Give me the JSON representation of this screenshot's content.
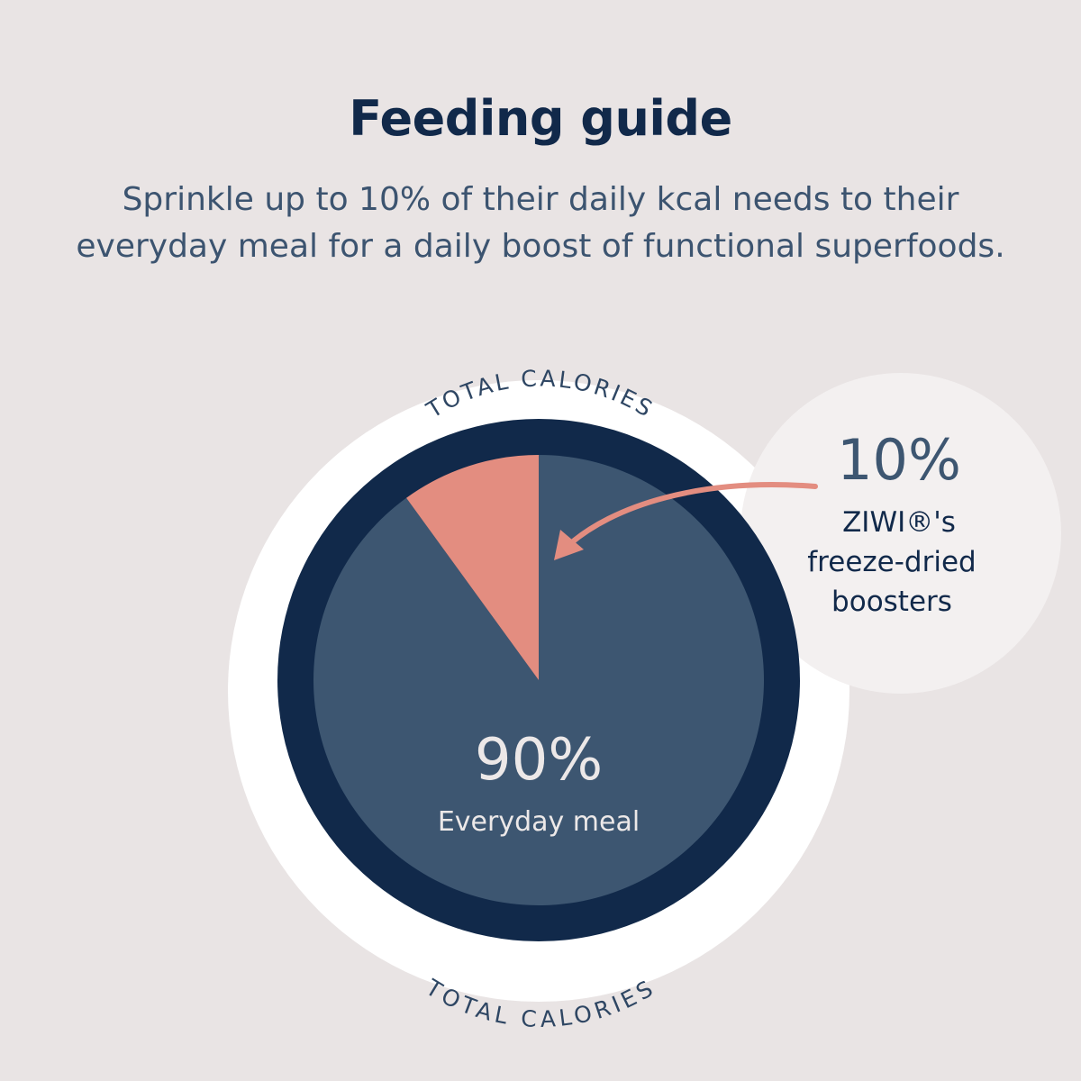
{
  "header": {
    "title": "Feeding guide",
    "subtitle": "Sprinkle up to 10% of their daily kcal needs to their everyday meal for a daily boost of functional superfoods."
  },
  "chart_data": {
    "type": "pie",
    "ring_label_top": "TOTAL CALORIES",
    "ring_label_bottom": "TOTAL CALORIES",
    "slices": [
      {
        "name": "Everyday meal",
        "value": 90,
        "label": "90%",
        "color": "#3d5671"
      },
      {
        "name": "ZIWI®'s freeze-dried boosters",
        "value": 10,
        "label": "10%",
        "color": "#e38d80"
      }
    ],
    "callout": {
      "value_label": "10%",
      "lines": [
        "ZIWI®'s",
        "freeze-dried",
        "boosters"
      ]
    },
    "main_label": {
      "value_label": "90%",
      "text": "Everyday meal"
    }
  },
  "colors": {
    "background": "#e9e4e4",
    "navy": "#11294a",
    "slate": "#3d5671",
    "salmon": "#e38d80",
    "bubble": "#f3f0f0"
  }
}
